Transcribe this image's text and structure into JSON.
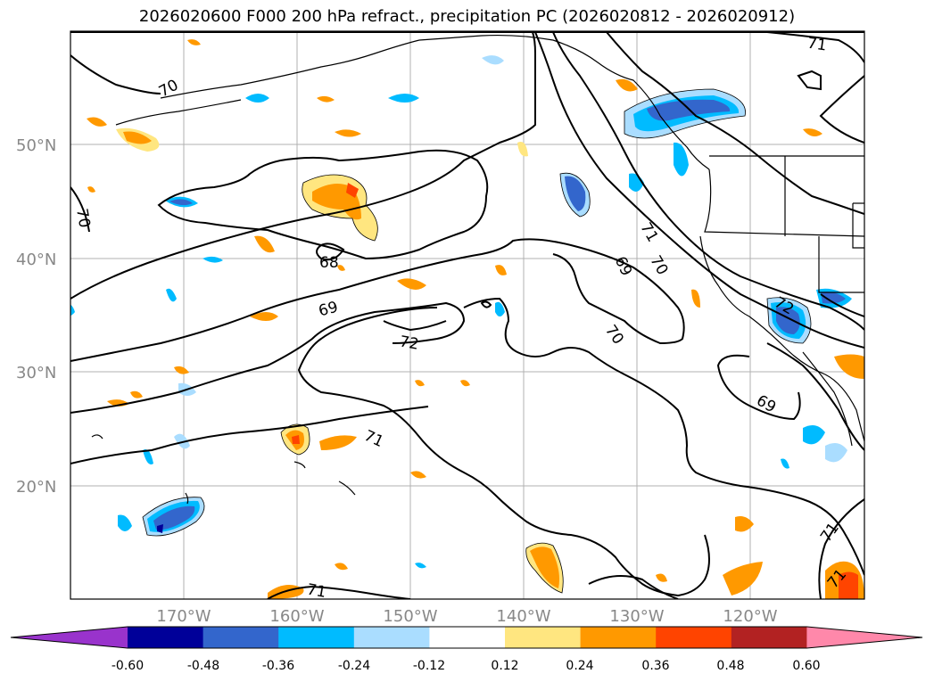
{
  "title": "2026020600 F000 200 hPa refract., precipitation PC (2026020812 - 2026020912)",
  "lat_labels": [
    "50°N",
    "40°N",
    "30°N",
    "20°N"
  ],
  "lon_labels": [
    "170°W",
    "160°W",
    "150°W",
    "140°W",
    "130°W",
    "120°W"
  ],
  "contour_labels": [
    "70",
    "70",
    "71",
    "68",
    "69",
    "72",
    "71",
    "69",
    "70",
    "70",
    "71",
    "69",
    "72",
    "71",
    "71",
    "71"
  ],
  "colorbar": {
    "ticks": [
      "-0.60",
      "-0.48",
      "-0.36",
      "-0.24",
      "-0.12",
      "0.12",
      "0.24",
      "0.36",
      "0.48",
      "0.60"
    ],
    "colors": [
      "#9933cc",
      "#000099",
      "#3366cc",
      "#00bbff",
      "#aaddff",
      "#ffffff",
      "#ffe680",
      "#ff9900",
      "#ff4400",
      "#b22222",
      "#ff88aa"
    ]
  }
}
